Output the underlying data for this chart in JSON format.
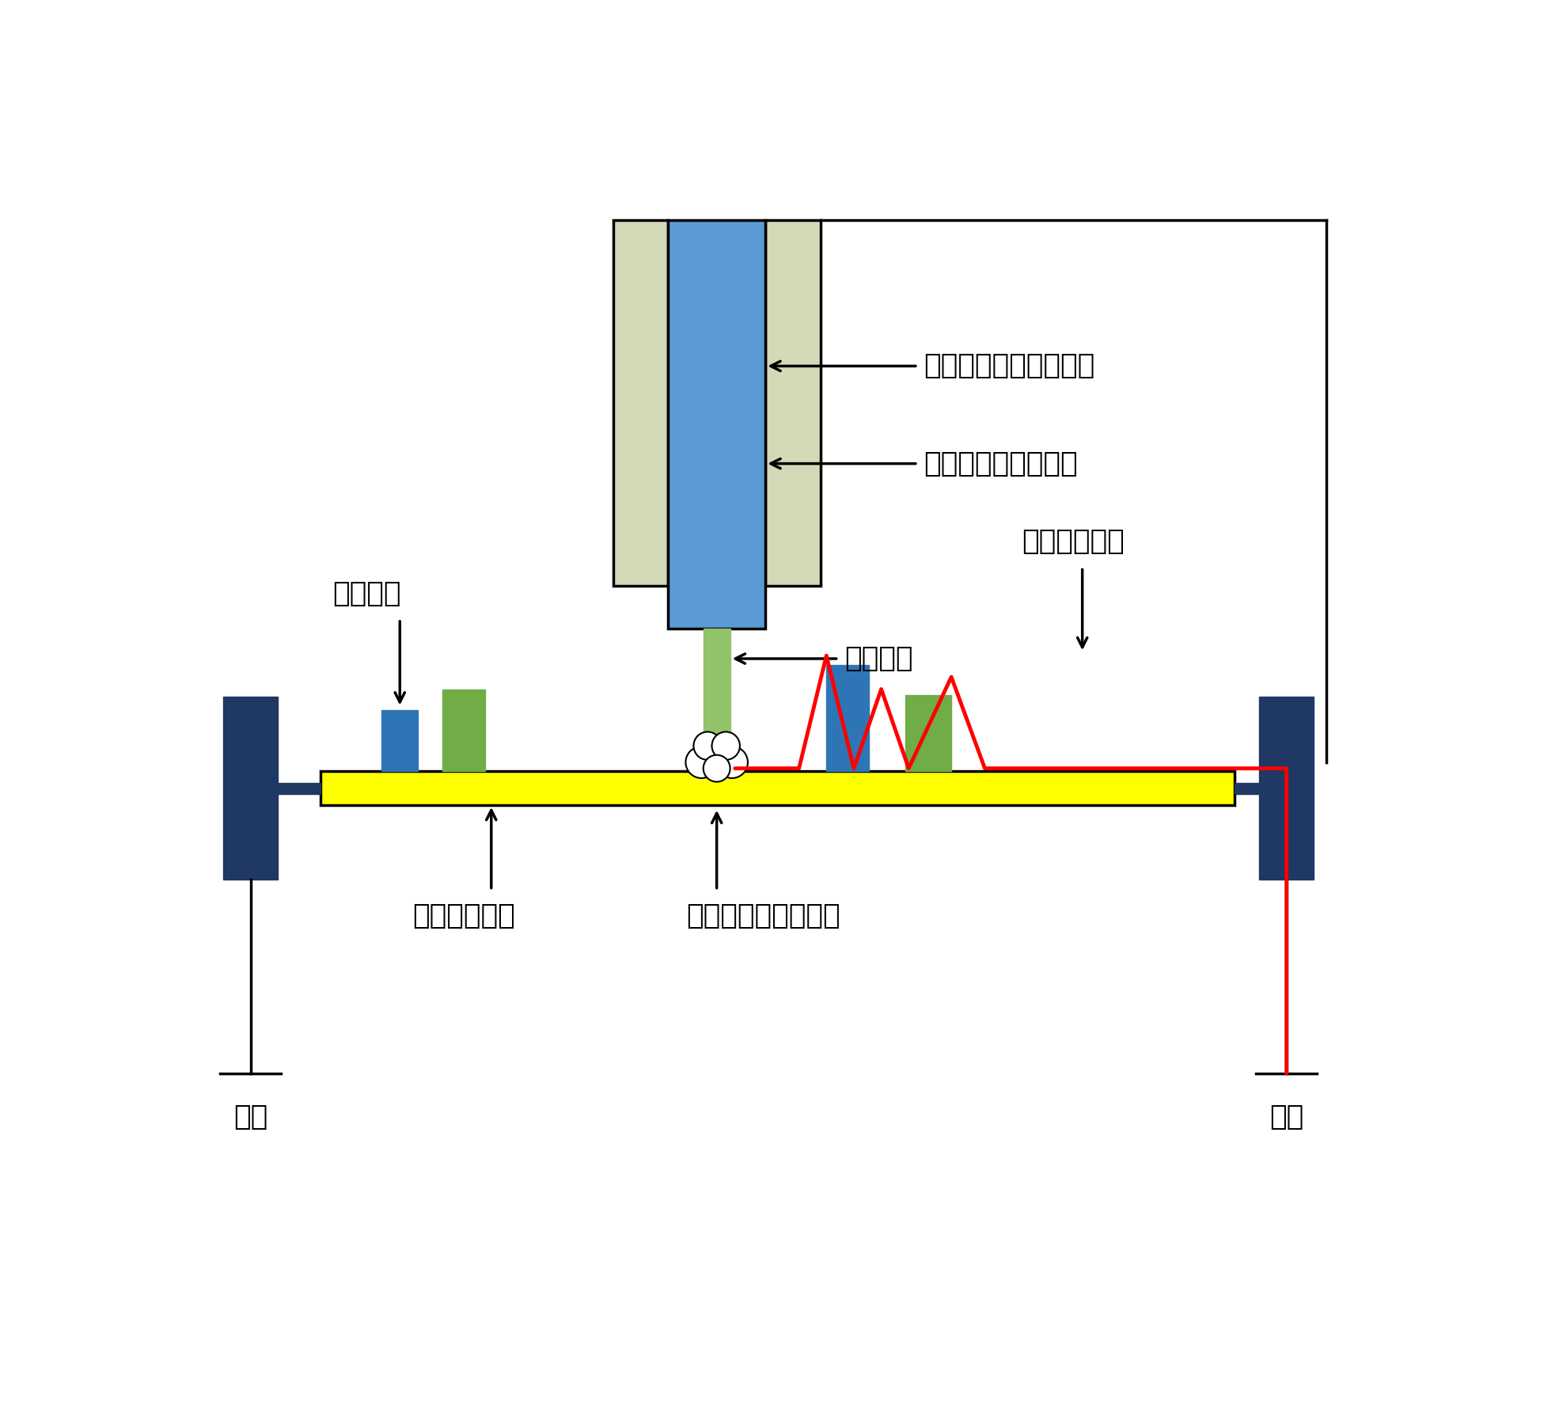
{
  "bg_color": "#ffffff",
  "spindle_housing_color": "#d4d9b8",
  "spindle_shaft_color": "#5b9bd5",
  "tool_color": "#92c36a",
  "pcb_color": "#ffff00",
  "component_blue_color": "#2e75b6",
  "component_green_color": "#70ad47",
  "chassis_color": "#1f3864",
  "static_line_color": "#ff0000",
  "text_color": "#000000",
  "label_spindle_housing": "スピンドルハウジング",
  "label_spindle_shaft": "スピンドルシャフト",
  "label_tool": "切削工具",
  "label_pcb": "プリント基板",
  "label_component": "電子部品",
  "label_static_flow": "静電気の流れ",
  "label_discharge": "基板での静電気放電",
  "label_chassis_left": "筐体",
  "label_chassis_right": "筐体"
}
